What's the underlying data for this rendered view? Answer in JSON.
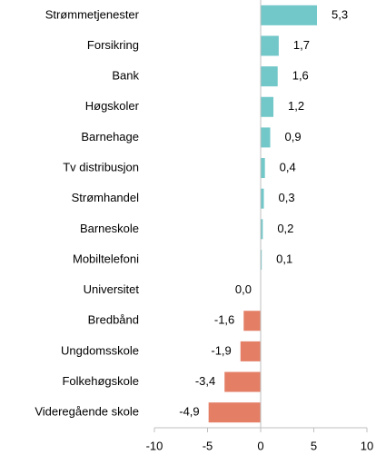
{
  "chart_data": {
    "type": "barh",
    "categories": [
      "Strømmetjenester",
      "Forsikring",
      "Bank",
      "Høgskoler",
      "Barnehage",
      "Tv distribusjon",
      "Strømhandel",
      "Barneskole",
      "Mobiltelefoni",
      "Universitet",
      "Bredbånd",
      "Ungdomsskole",
      "Folkehøgskole",
      "Videregående skole"
    ],
    "values": [
      5.3,
      1.7,
      1.6,
      1.2,
      0.9,
      0.4,
      0.3,
      0.2,
      0.1,
      0.0,
      -1.6,
      -1.9,
      -3.4,
      -4.9
    ],
    "value_labels": [
      "5,3",
      "1,7",
      "1,6",
      "1,2",
      "0,9",
      "0,4",
      "0,3",
      "0,2",
      "0,1",
      "0,0",
      "-1,6",
      "-1,9",
      "-3,4",
      "-4,9"
    ],
    "color_positive": "#72c7c9",
    "color_negative": "#e47f66",
    "xlim": [
      -10,
      10
    ],
    "xticks": [
      -10,
      -5,
      0,
      5,
      10
    ]
  }
}
